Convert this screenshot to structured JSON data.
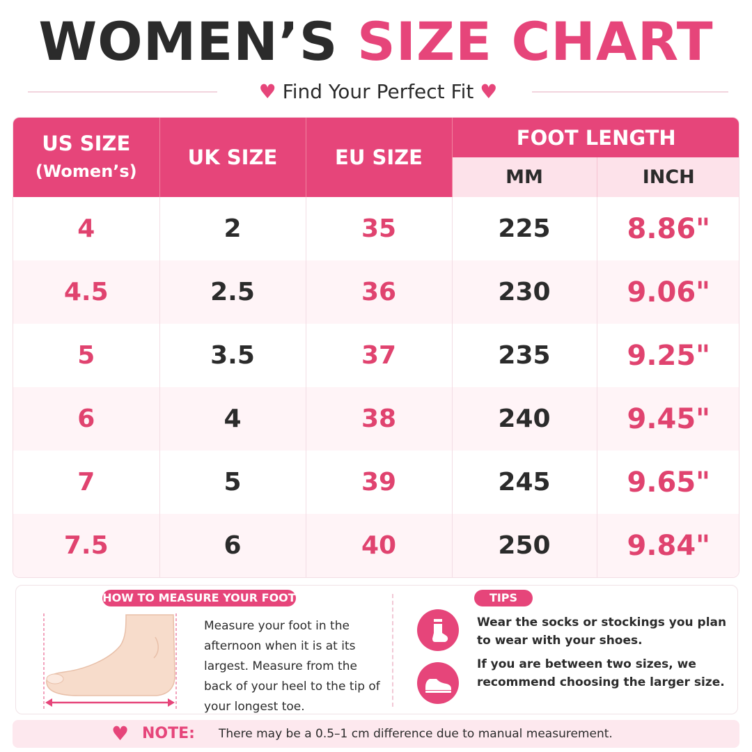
{
  "header": {
    "title_part1": "WOMEN’S",
    "title_part2": "SIZE CHART",
    "subtitle": "Find Your Perfect Fit"
  },
  "table": {
    "headers": {
      "us_line1": "US SIZE",
      "us_line2": "(Women’s)",
      "uk": "UK SIZE",
      "eu": "EU SIZE",
      "foot_length": "FOOT LENGTH",
      "mm": "MM",
      "inch": "INCH"
    },
    "rows": [
      {
        "us": "4",
        "uk": "2",
        "eu": "35",
        "mm": "225",
        "inch": "8.86\""
      },
      {
        "us": "4.5",
        "uk": "2.5",
        "eu": "36",
        "mm": "230",
        "inch": "9.06\""
      },
      {
        "us": "5",
        "uk": "3.5",
        "eu": "37",
        "mm": "235",
        "inch": "9.25\""
      },
      {
        "us": "6",
        "uk": "4",
        "eu": "38",
        "mm": "240",
        "inch": "9.45\""
      },
      {
        "us": "7",
        "uk": "5",
        "eu": "39",
        "mm": "245",
        "inch": "9.65\""
      },
      {
        "us": "7.5",
        "uk": "6",
        "eu": "40",
        "mm": "250",
        "inch": "9.84\""
      }
    ]
  },
  "measure": {
    "label": "HOW TO MEASURE YOUR FOOT",
    "text": "Measure your foot in the afternoon when it is at its largest. Measure from the back of your heel to the tip of your longest toe."
  },
  "tips": {
    "label": "TIPS",
    "tip1": "Wear the socks or stockings you plan to wear with your shoes.",
    "tip2": "If you are between two sizes, we recommend choosing the larger size."
  },
  "note": {
    "label": "NOTE:",
    "text": "There may be a 0.5–1 cm difference due to manual measurement."
  },
  "colors": {
    "accent": "#e6457a",
    "dark": "#2b2b2b",
    "row_alt": "#fff4f7",
    "subheader": "#fde2ea"
  },
  "icons": [
    "heart-icon",
    "foot-illustration",
    "sock-icon",
    "shoe-icon"
  ]
}
